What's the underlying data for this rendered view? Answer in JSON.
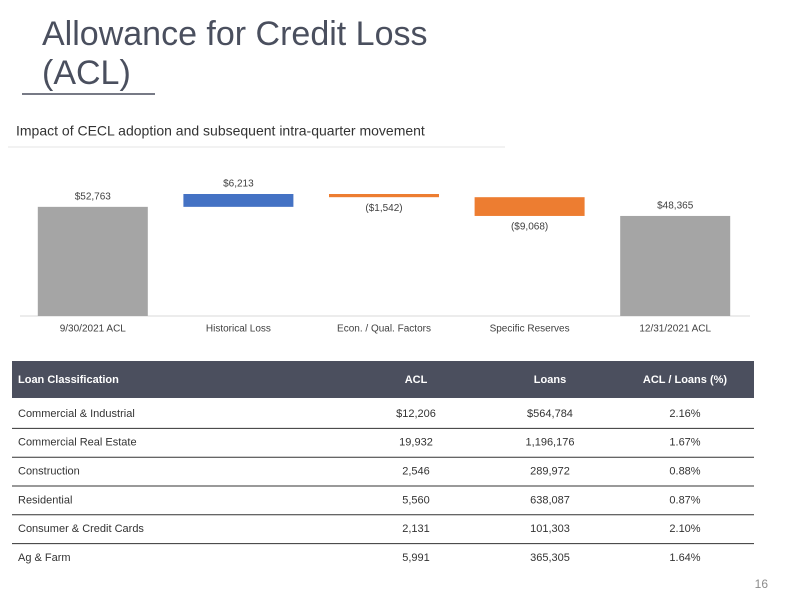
{
  "slide": {
    "title_lines": [
      "Allowance for Credit Loss",
      "(ACL)"
    ],
    "subtitle": "Impact of CECL adoption and subsequent intra-quarter movement",
    "page_number": "16"
  },
  "chart_data": {
    "type": "waterfall",
    "categories": [
      "9/30/2021 ACL",
      "Historical Loss",
      "Econ. / Qual. Factors",
      "Specific Reserves",
      "12/31/2021 ACL"
    ],
    "values": [
      52763,
      6213,
      -1542,
      -9068,
      48365
    ],
    "value_labels": [
      "$52,763",
      "$6,213",
      "($1,542)",
      "($9,068)",
      "$48,365"
    ],
    "measure": [
      "absolute",
      "relative",
      "relative",
      "relative",
      "absolute"
    ],
    "colors": [
      "#a5a5a5",
      "#4472c4",
      "#ed7d31",
      "#ed7d31",
      "#a5a5a5"
    ]
  },
  "table": {
    "columns": [
      "Loan Classification",
      "ACL",
      "Loans",
      "ACL / Loans (%)"
    ],
    "rows": [
      [
        "Commercial & Industrial",
        "$12,206",
        "$564,784",
        "2.16%"
      ],
      [
        "Commercial Real Estate",
        "19,932",
        "1,196,176",
        "1.67%"
      ],
      [
        "Construction",
        "2,546",
        "289,972",
        "0.88%"
      ],
      [
        "Residential",
        "5,560",
        "638,087",
        "0.87%"
      ],
      [
        "Consumer & Credit Cards",
        "2,131",
        "101,303",
        "2.10%"
      ],
      [
        "Ag & Farm",
        "5,991",
        "365,305",
        "1.64%"
      ]
    ]
  }
}
